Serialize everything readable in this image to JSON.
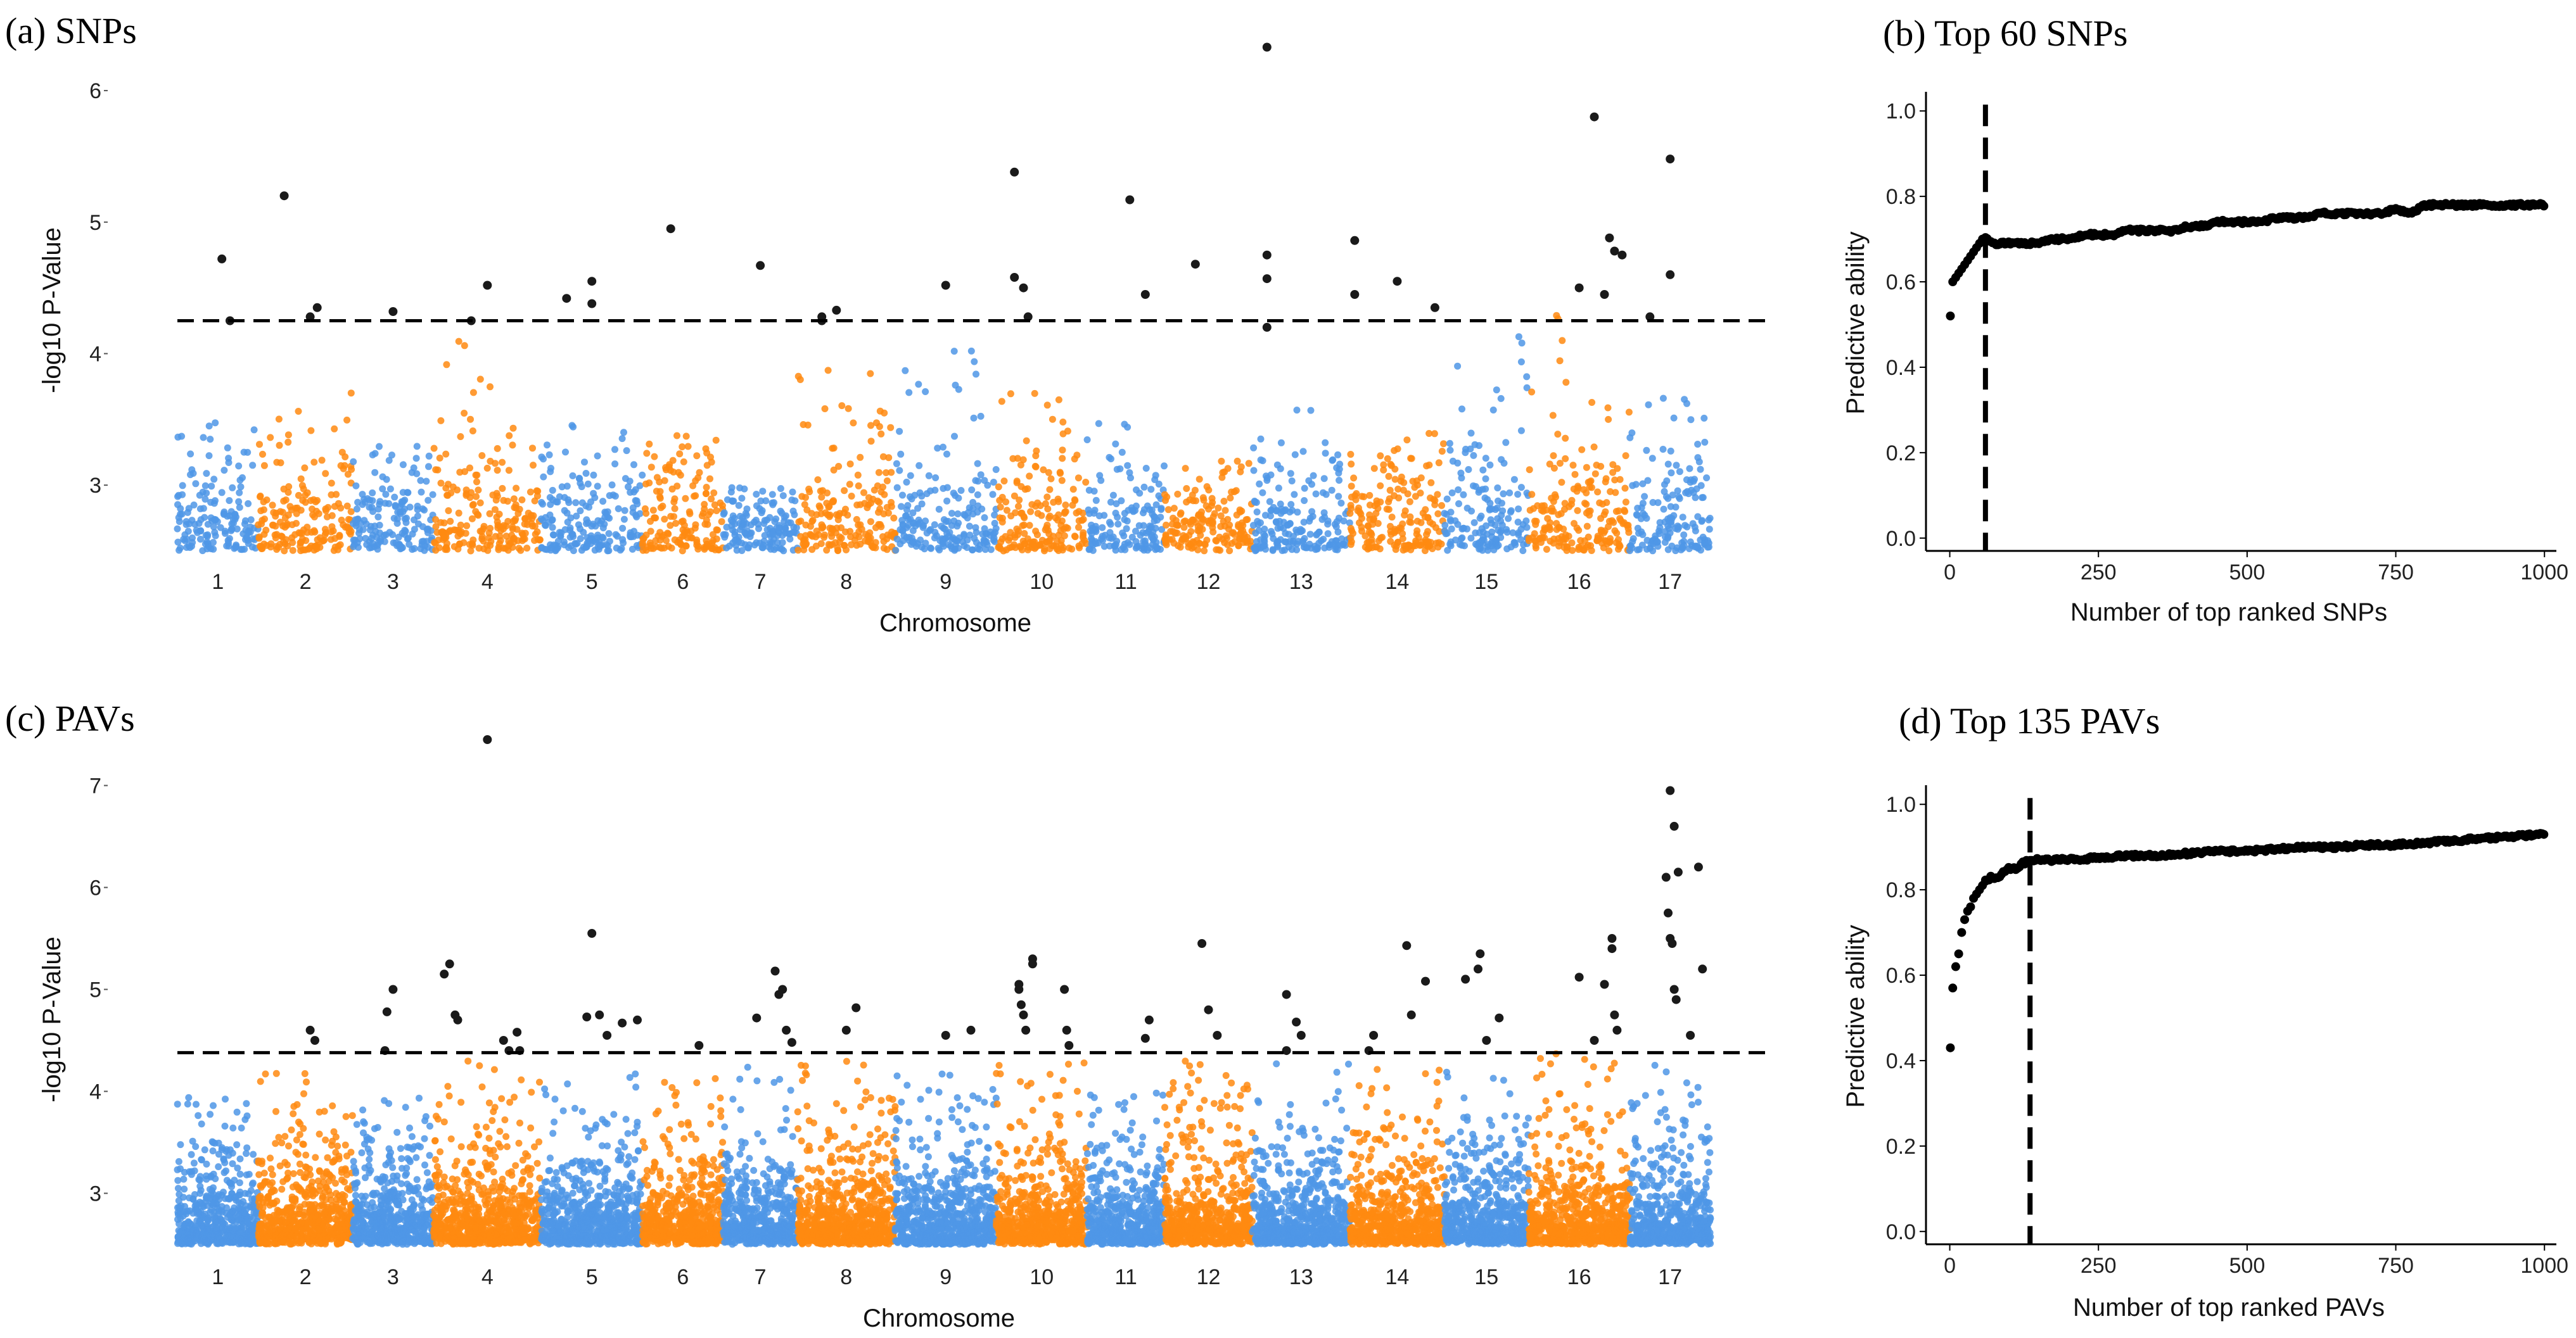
{
  "colors": {
    "blue": "#4f97e6",
    "orange": "#ff8a10",
    "sig": "#1a1a1a",
    "line": "#000000"
  },
  "chart_data": [
    {
      "id": "a",
      "type": "scatter",
      "subtype": "manhattan",
      "title": "(a) SNPs",
      "xlabel": "Chromosome",
      "ylabel": "-log10 P-Value",
      "ylim": [
        2.5,
        6.4
      ],
      "yticks": [
        "3",
        "4",
        "5",
        "6"
      ],
      "categories": [
        "1",
        "2",
        "3",
        "4",
        "5",
        "6",
        "7",
        "8",
        "9",
        "10",
        "11",
        "12",
        "13",
        "14",
        "15",
        "16",
        "17"
      ],
      "threshold": 4.25,
      "chrom_heights": [
        3.5,
        3.8,
        3.3,
        4.2,
        3.5,
        3.4,
        3.0,
        4.1,
        4.2,
        3.8,
        3.5,
        3.2,
        3.6,
        3.4,
        4.2,
        4.3,
        3.7
      ],
      "significant_points": [
        [
          1,
          0.1,
          4.72
        ],
        [
          1,
          0.3,
          4.25
        ],
        [
          2,
          -0.45,
          5.2
        ],
        [
          2,
          0.1,
          4.28
        ],
        [
          2,
          0.25,
          4.35
        ],
        [
          3,
          0.0,
          4.32
        ],
        [
          4,
          0.0,
          4.52
        ],
        [
          4,
          -0.3,
          4.25
        ],
        [
          5,
          -0.5,
          4.42
        ],
        [
          5,
          0.0,
          4.55
        ],
        [
          5,
          0.0,
          4.38
        ],
        [
          6,
          -0.3,
          4.95
        ],
        [
          7,
          0.0,
          4.67
        ],
        [
          8,
          -0.5,
          4.25
        ],
        [
          8,
          -0.5,
          4.28
        ],
        [
          8,
          -0.2,
          4.33
        ],
        [
          9,
          0.0,
          4.52
        ],
        [
          10,
          -0.6,
          5.38
        ],
        [
          10,
          -0.6,
          4.58
        ],
        [
          10,
          -0.4,
          4.5
        ],
        [
          10,
          -0.3,
          4.28
        ],
        [
          11,
          0.1,
          5.17
        ],
        [
          11,
          0.5,
          4.45
        ],
        [
          12,
          -0.3,
          4.68
        ],
        [
          13,
          -0.7,
          6.33
        ],
        [
          13,
          -0.7,
          4.75
        ],
        [
          13,
          -0.7,
          4.57
        ],
        [
          13,
          -0.7,
          4.2
        ],
        [
          14,
          -0.9,
          4.86
        ],
        [
          14,
          -0.9,
          4.45
        ],
        [
          14,
          0.0,
          4.55
        ],
        [
          14,
          0.8,
          4.35
        ],
        [
          16,
          0.0,
          4.5
        ],
        [
          16,
          0.3,
          5.8
        ],
        [
          16,
          0.5,
          4.45
        ],
        [
          16,
          0.6,
          4.88
        ],
        [
          16,
          0.7,
          4.78
        ],
        [
          16,
          0.85,
          4.75
        ],
        [
          17,
          -0.5,
          4.28
        ],
        [
          17,
          0.0,
          5.48
        ],
        [
          17,
          0.0,
          4.6
        ]
      ]
    },
    {
      "id": "b",
      "type": "line",
      "title": "(b) Top 60 SNPs",
      "xlabel": "Number of top ranked SNPs",
      "ylabel": "Predictive ability",
      "xlim": [
        -40,
        1020
      ],
      "ylim": [
        -0.03,
        1.03
      ],
      "xticks": [
        "0",
        "250",
        "500",
        "750",
        "1000"
      ],
      "yticks": [
        "0.0",
        "0.2",
        "0.4",
        "0.6",
        "0.8",
        "1.0"
      ],
      "cutoff": 60,
      "x": [
        1,
        5,
        10,
        15,
        20,
        25,
        30,
        35,
        40,
        45,
        50,
        55,
        60,
        65,
        70,
        80,
        100,
        125,
        150,
        175,
        200,
        225,
        250,
        275,
        300,
        325,
        350,
        375,
        400,
        425,
        450,
        475,
        500,
        525,
        550,
        575,
        600,
        625,
        650,
        675,
        700,
        725,
        750,
        775,
        800,
        825,
        850,
        875,
        900,
        925,
        950,
        975,
        1000
      ],
      "y": [
        0.52,
        0.6,
        0.61,
        0.62,
        0.63,
        0.64,
        0.65,
        0.66,
        0.67,
        0.68,
        0.69,
        0.7,
        0.7,
        0.7,
        0.69,
        0.69,
        0.69,
        0.69,
        0.69,
        0.7,
        0.7,
        0.71,
        0.71,
        0.71,
        0.72,
        0.72,
        0.72,
        0.72,
        0.73,
        0.73,
        0.74,
        0.74,
        0.74,
        0.74,
        0.75,
        0.75,
        0.75,
        0.76,
        0.76,
        0.76,
        0.76,
        0.76,
        0.77,
        0.76,
        0.78,
        0.78,
        0.78,
        0.78,
        0.78,
        0.78,
        0.78,
        0.78,
        0.78
      ]
    },
    {
      "id": "c",
      "type": "scatter",
      "subtype": "manhattan",
      "title": "(c) PAVs",
      "xlabel": "Chromosome",
      "ylabel": "-log10 P-Value",
      "ylim": [
        2.5,
        7.5
      ],
      "yticks": [
        "3",
        "4",
        "5",
        "6",
        "7"
      ],
      "categories": [
        "1",
        "2",
        "3",
        "4",
        "5",
        "6",
        "7",
        "8",
        "9",
        "10",
        "11",
        "12",
        "13",
        "14",
        "15",
        "16",
        "17"
      ],
      "threshold": 4.38,
      "chrom_heights": [
        4.0,
        4.2,
        4.0,
        4.3,
        4.2,
        4.2,
        4.3,
        4.3,
        4.2,
        4.3,
        4.0,
        4.3,
        4.3,
        4.3,
        4.3,
        4.4,
        4.3
      ],
      "significant_points": [
        [
          2,
          0.1,
          4.6
        ],
        [
          2,
          0.2,
          4.5
        ],
        [
          3,
          -0.15,
          4.78
        ],
        [
          3,
          0.0,
          5.0
        ],
        [
          3,
          -0.2,
          4.4
        ],
        [
          4,
          -0.8,
          5.15
        ],
        [
          4,
          -0.7,
          5.25
        ],
        [
          4,
          -0.6,
          4.75
        ],
        [
          4,
          -0.55,
          4.7
        ],
        [
          4,
          0.0,
          7.45
        ],
        [
          4,
          0.3,
          4.5
        ],
        [
          4,
          0.4,
          4.4
        ],
        [
          4,
          0.55,
          4.58
        ],
        [
          4,
          0.6,
          4.4
        ],
        [
          5,
          0.0,
          5.55
        ],
        [
          5,
          -0.1,
          4.73
        ],
        [
          5,
          0.15,
          4.75
        ],
        [
          5,
          0.3,
          4.55
        ],
        [
          5,
          0.6,
          4.67
        ],
        [
          5,
          0.9,
          4.7
        ],
        [
          6,
          0.4,
          4.45
        ],
        [
          7,
          -0.1,
          4.72
        ],
        [
          7,
          0.4,
          5.18
        ],
        [
          7,
          0.5,
          4.95
        ],
        [
          7,
          0.6,
          5.0
        ],
        [
          7,
          0.7,
          4.6
        ],
        [
          7,
          0.85,
          4.48
        ],
        [
          8,
          0.0,
          4.6
        ],
        [
          8,
          0.2,
          4.82
        ],
        [
          9,
          0.0,
          4.55
        ],
        [
          9,
          0.5,
          4.6
        ],
        [
          10,
          -0.5,
          5.05
        ],
        [
          10,
          -0.5,
          5.0
        ],
        [
          10,
          -0.45,
          4.85
        ],
        [
          10,
          -0.4,
          4.75
        ],
        [
          10,
          -0.35,
          4.6
        ],
        [
          10,
          -0.2,
          5.3
        ],
        [
          10,
          -0.2,
          5.25
        ],
        [
          10,
          0.5,
          5.0
        ],
        [
          10,
          0.55,
          4.6
        ],
        [
          10,
          0.6,
          4.45
        ],
        [
          11,
          0.5,
          4.52
        ],
        [
          11,
          0.6,
          4.7
        ],
        [
          12,
          -0.15,
          5.45
        ],
        [
          12,
          0.0,
          4.8
        ],
        [
          12,
          0.2,
          4.55
        ],
        [
          13,
          -0.3,
          4.95
        ],
        [
          13,
          -0.1,
          4.68
        ],
        [
          13,
          0.0,
          4.55
        ],
        [
          13,
          -0.3,
          4.4
        ],
        [
          14,
          -0.6,
          4.4
        ],
        [
          14,
          -0.5,
          4.55
        ],
        [
          14,
          0.2,
          5.43
        ],
        [
          14,
          0.3,
          4.75
        ],
        [
          14,
          0.6,
          5.08
        ],
        [
          15,
          -0.5,
          5.1
        ],
        [
          15,
          -0.2,
          5.2
        ],
        [
          15,
          -0.15,
          5.35
        ],
        [
          15,
          0.0,
          4.5
        ],
        [
          15,
          0.3,
          4.72
        ],
        [
          16,
          0.0,
          5.12
        ],
        [
          16,
          0.3,
          4.5
        ],
        [
          16,
          0.5,
          5.05
        ],
        [
          16,
          0.65,
          5.5
        ],
        [
          16,
          0.65,
          5.4
        ],
        [
          16,
          0.7,
          4.75
        ],
        [
          16,
          0.75,
          4.6
        ],
        [
          17,
          0.0,
          6.95
        ],
        [
          17,
          0.1,
          6.6
        ],
        [
          17,
          -0.1,
          6.1
        ],
        [
          17,
          -0.05,
          5.75
        ],
        [
          17,
          0.2,
          6.15
        ],
        [
          17,
          0.0,
          5.5
        ],
        [
          17,
          0.05,
          5.45
        ],
        [
          17,
          0.1,
          5.0
        ],
        [
          17,
          0.15,
          4.9
        ],
        [
          17,
          0.5,
          4.55
        ],
        [
          17,
          0.7,
          6.2
        ],
        [
          17,
          0.8,
          5.2
        ]
      ]
    },
    {
      "id": "d",
      "type": "line",
      "title": "(d) Top 135 PAVs",
      "xlabel": "Number of top ranked PAVs",
      "ylabel": "Predictive ability",
      "xlim": [
        -40,
        1020
      ],
      "ylim": [
        -0.03,
        1.03
      ],
      "xticks": [
        "0",
        "250",
        "500",
        "750",
        "1000"
      ],
      "yticks": [
        "0.0",
        "0.2",
        "0.4",
        "0.6",
        "0.8",
        "1.0"
      ],
      "cutoff": 135,
      "x": [
        1,
        5,
        10,
        15,
        20,
        25,
        30,
        35,
        40,
        45,
        50,
        55,
        60,
        70,
        80,
        90,
        100,
        110,
        120,
        135,
        150,
        175,
        200,
        250,
        300,
        350,
        400,
        450,
        500,
        550,
        600,
        650,
        700,
        750,
        800,
        850,
        900,
        950,
        1000
      ],
      "y": [
        0.43,
        0.57,
        0.62,
        0.65,
        0.7,
        0.73,
        0.75,
        0.76,
        0.78,
        0.79,
        0.8,
        0.81,
        0.82,
        0.83,
        0.83,
        0.84,
        0.85,
        0.85,
        0.86,
        0.87,
        0.87,
        0.87,
        0.87,
        0.875,
        0.88,
        0.88,
        0.885,
        0.89,
        0.89,
        0.895,
        0.9,
        0.9,
        0.905,
        0.905,
        0.91,
        0.915,
        0.92,
        0.925,
        0.93
      ]
    }
  ]
}
